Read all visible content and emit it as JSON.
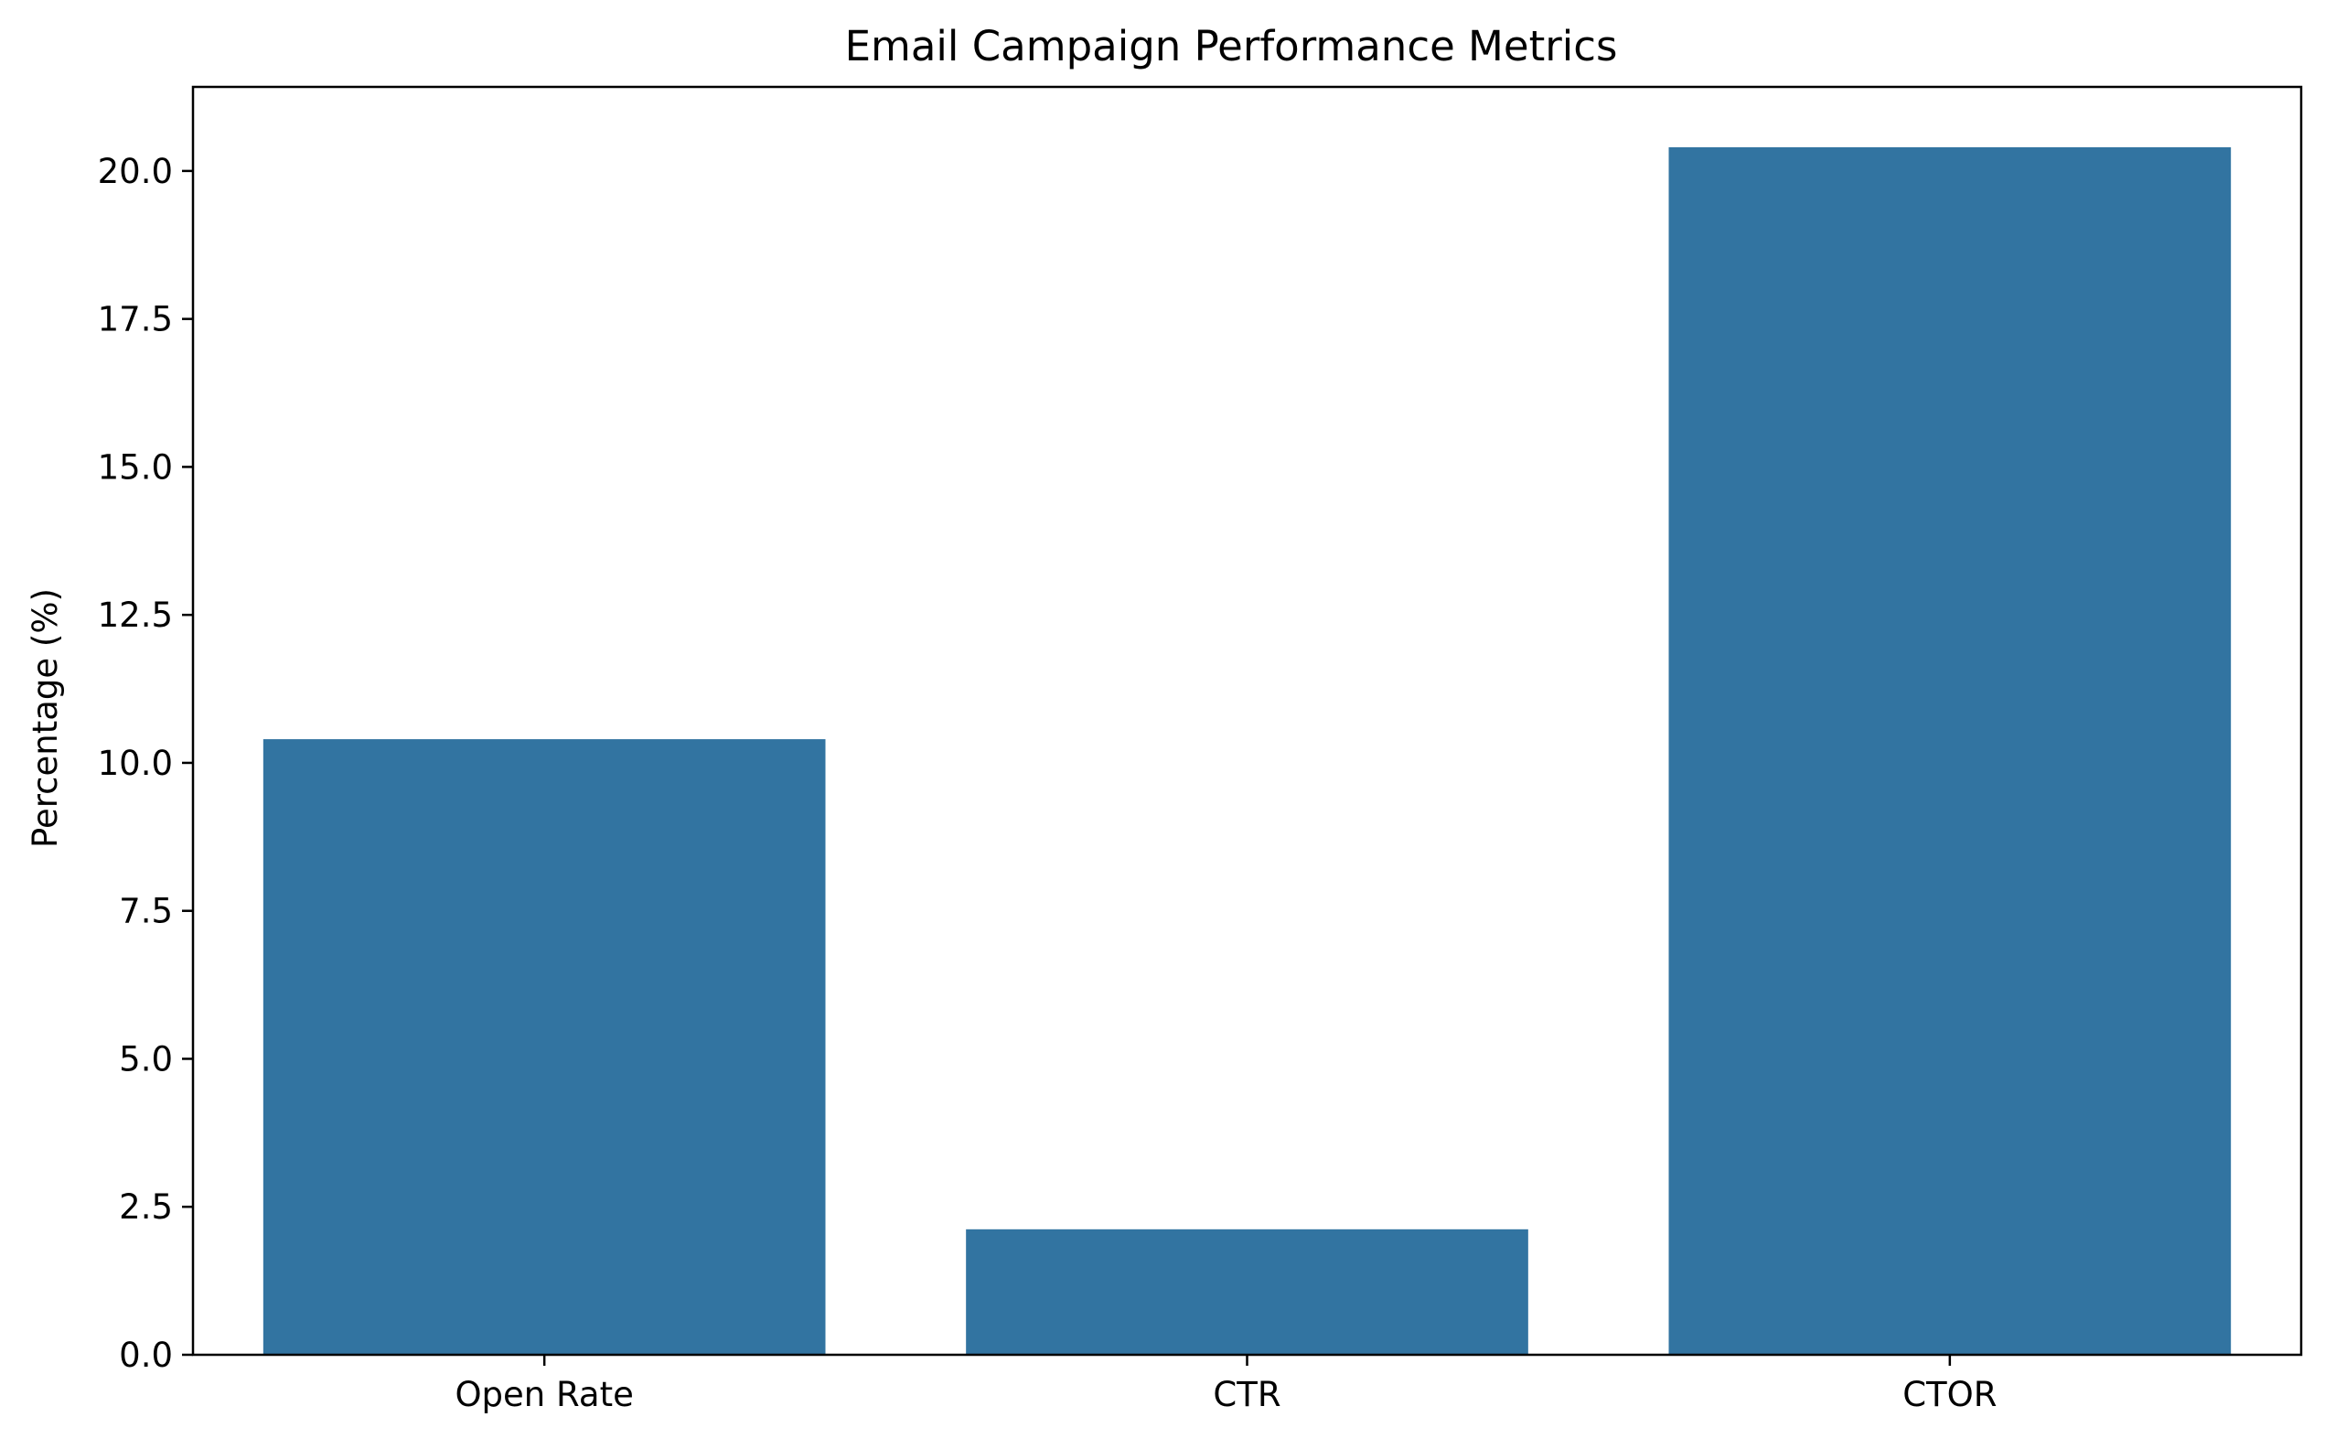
{
  "chart_data": {
    "type": "bar",
    "title": "Email Campaign Performance Metrics",
    "xlabel": "",
    "ylabel": "Percentage (%)",
    "categories": [
      "Open Rate",
      "CTR",
      "CTOR"
    ],
    "values": [
      10.4,
      2.12,
      20.4
    ],
    "ylim": [
      0,
      21.42
    ],
    "yticks": [
      0.0,
      2.5,
      5.0,
      7.5,
      10.0,
      12.5,
      15.0,
      17.5,
      20.0
    ],
    "ytick_labels": [
      "0.0",
      "2.5",
      "5.0",
      "7.5",
      "10.0",
      "12.5",
      "15.0",
      "17.5",
      "20.0"
    ],
    "bar_color": "#3274a1",
    "grid": false,
    "legend": "none"
  }
}
